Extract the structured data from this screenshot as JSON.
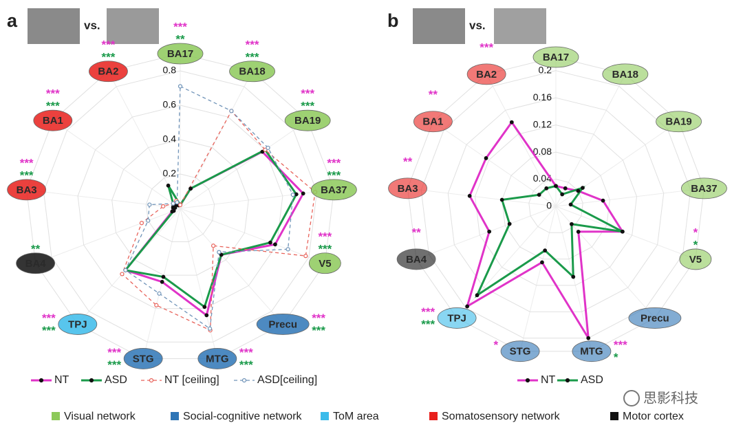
{
  "chart_data": [
    {
      "type": "radar",
      "panel": "a",
      "comparison_label": "vs.",
      "categories": [
        "BA17",
        "BA18",
        "BA19",
        "BA37",
        "V5",
        "Precu",
        "MTG",
        "STG",
        "TPJ",
        "BA4",
        "BA3",
        "BA1",
        "BA2"
      ],
      "category_groups": [
        0,
        0,
        0,
        0,
        0,
        1,
        1,
        1,
        2,
        4,
        3,
        3,
        3
      ],
      "rlim": [
        0,
        0.9
      ],
      "rticks": [
        0,
        0.2,
        0.4,
        0.6,
        0.8
      ],
      "series": [
        {
          "name": "NT",
          "color": "#e033c8",
          "dashed": false,
          "hollow": false,
          "values": [
            0.02,
            0.13,
            0.58,
            0.72,
            0.59,
            0.36,
            0.64,
            0.44,
            0.48,
            0.05,
            0.04,
            0.03,
            0.02
          ],
          "stars": [
            "***",
            "***",
            "***",
            "***",
            "***",
            "***",
            "***",
            "***",
            "***",
            null,
            "***",
            "***",
            "***"
          ]
        },
        {
          "name": "ASD",
          "color": "#1a9a4a",
          "dashed": false,
          "hollow": false,
          "values": [
            0.02,
            0.13,
            0.6,
            0.68,
            0.56,
            0.36,
            0.59,
            0.41,
            0.48,
            0.04,
            0.03,
            0.05,
            0.15
          ],
          "stars": [
            "**",
            "***",
            "***",
            "***",
            "***",
            "***",
            "***",
            "***",
            "***",
            "**",
            "***",
            "***",
            "***"
          ]
        },
        {
          "name": "NT [ceiling]",
          "color": "#e8625a",
          "dashed": true,
          "hollow": true,
          "values": [
            0.02,
            0.64,
            0.6,
            0.79,
            0.78,
            0.29,
            0.73,
            0.58,
            0.51,
            0.24,
            0.1,
            0.05,
            0.05
          ]
        },
        {
          "name": "ASD[ceiling]",
          "color": "#6f93b8",
          "dashed": true,
          "hollow": true,
          "values": [
            0.71,
            0.64,
            0.62,
            0.66,
            0.67,
            0.34,
            0.72,
            0.51,
            0.48,
            0.2,
            0.18,
            0.05,
            0.04
          ]
        }
      ]
    },
    {
      "type": "radar",
      "panel": "b",
      "comparison_label": "vs.",
      "categories": [
        "BA17",
        "BA18",
        "BA19",
        "BA37",
        "V5",
        "Precu",
        "MTG",
        "STG",
        "TPJ",
        "BA4",
        "BA3",
        "BA1",
        "BA2"
      ],
      "category_groups": [
        0,
        0,
        0,
        0,
        0,
        1,
        1,
        1,
        2,
        4,
        3,
        3,
        3
      ],
      "rlim": [
        0,
        0.22
      ],
      "rticks": [
        0,
        0.04,
        0.08,
        0.12,
        0.16,
        0.2
      ],
      "series": [
        {
          "name": "NT",
          "color": "#e033c8",
          "dashed": false,
          "hollow": false,
          "values": [
            0.03,
            0.03,
            0.04,
            0.07,
            0.105,
            0.05,
            0.2,
            0.085,
            0.197,
            0.105,
            0.128,
            0.125,
            0.14
          ],
          "stars": [
            null,
            null,
            null,
            null,
            "*",
            null,
            "***",
            "*",
            "***",
            "**",
            "**",
            "**",
            "***"
          ]
        },
        {
          "name": "ASD",
          "color": "#1a9a4a",
          "dashed": false,
          "hollow": false,
          "values": [
            0.03,
            0.02,
            0.048,
            0.022,
            0.105,
            0.035,
            0.107,
            0.067,
            0.175,
            0.073,
            0.08,
            0.03,
            0.03
          ],
          "stars": [
            null,
            null,
            null,
            null,
            "*",
            null,
            "*",
            null,
            "***",
            null,
            null,
            null,
            null
          ]
        }
      ]
    }
  ],
  "groups": [
    {
      "name": "Visual network",
      "color": "#8dc95a"
    },
    {
      "name": "Social-cognitive network",
      "color": "#2e75b6"
    },
    {
      "name": "ToM area",
      "color": "#3bbbea"
    },
    {
      "name": "Somatosensory network",
      "color": "#e8201c"
    },
    {
      "name": "Motor cortex",
      "color": "#111111"
    }
  ],
  "watermark": "思影科技"
}
